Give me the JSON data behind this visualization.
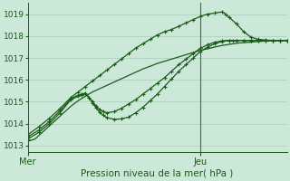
{
  "background_color": "#cce8d8",
  "grid_color": "#aaccbb",
  "line_color": "#1a5c1a",
  "ylabel_ticks": [
    1013,
    1014,
    1015,
    1016,
    1017,
    1018,
    1019
  ],
  "xlim": [
    0,
    72
  ],
  "ylim": [
    1012.7,
    1019.5
  ],
  "xlabel": "Pression niveau de la mer( hPa )",
  "xtick_positions": [
    0,
    48
  ],
  "xtick_labels": [
    "Mer",
    "Jeu"
  ],
  "vline_x": 48,
  "vline_color": "#4a6a4a",
  "line1_x": [
    0,
    2,
    4,
    6,
    8,
    10,
    12,
    14,
    16,
    18,
    20,
    22,
    24,
    26,
    28,
    30,
    32,
    34,
    36,
    38,
    40,
    42,
    44,
    46,
    48,
    50,
    52,
    54,
    56,
    58,
    60,
    62,
    64,
    66,
    68,
    70,
    72
  ],
  "line1_y": [
    1013.2,
    1013.3,
    1013.6,
    1013.9,
    1014.2,
    1014.5,
    1014.8,
    1015.05,
    1015.25,
    1015.45,
    1015.6,
    1015.75,
    1015.9,
    1016.05,
    1016.2,
    1016.35,
    1016.5,
    1016.62,
    1016.75,
    1016.85,
    1016.95,
    1017.05,
    1017.15,
    1017.25,
    1017.35,
    1017.42,
    1017.5,
    1017.57,
    1017.62,
    1017.67,
    1017.7,
    1017.72,
    1017.75,
    1017.77,
    1017.78,
    1017.79,
    1017.8
  ],
  "line2_x": [
    0,
    3,
    6,
    9,
    12,
    14,
    15,
    16,
    17,
    18,
    19,
    20,
    21,
    22,
    24,
    26,
    28,
    30,
    32,
    34,
    36,
    38,
    40,
    42,
    44,
    46,
    48,
    50,
    52,
    54,
    56,
    58,
    60,
    62,
    64,
    66,
    68,
    70,
    72
  ],
  "line2_y": [
    1013.3,
    1013.6,
    1014.0,
    1014.5,
    1015.1,
    1015.25,
    1015.3,
    1015.35,
    1015.2,
    1015.0,
    1014.8,
    1014.65,
    1014.55,
    1014.5,
    1014.55,
    1014.7,
    1014.9,
    1015.1,
    1015.35,
    1015.6,
    1015.85,
    1016.1,
    1016.4,
    1016.7,
    1016.95,
    1017.2,
    1017.45,
    1017.6,
    1017.72,
    1017.78,
    1017.8,
    1017.8,
    1017.8,
    1017.8,
    1017.8,
    1017.8,
    1017.8,
    1017.8,
    1017.8
  ],
  "line3_x": [
    0,
    3,
    6,
    9,
    12,
    14,
    15,
    16,
    17,
    18,
    19,
    20,
    21,
    22,
    24,
    26,
    28,
    30,
    32,
    34,
    36,
    38,
    40,
    42,
    44,
    46,
    48,
    50,
    52,
    54,
    56,
    57,
    58,
    60,
    62,
    64,
    66,
    68,
    70,
    72
  ],
  "line3_y": [
    1013.4,
    1013.7,
    1014.1,
    1014.6,
    1015.15,
    1015.3,
    1015.35,
    1015.4,
    1015.2,
    1014.95,
    1014.72,
    1014.52,
    1014.38,
    1014.28,
    1014.2,
    1014.22,
    1014.3,
    1014.5,
    1014.75,
    1015.05,
    1015.35,
    1015.7,
    1016.05,
    1016.4,
    1016.7,
    1017.0,
    1017.3,
    1017.5,
    1017.65,
    1017.75,
    1017.8,
    1017.8,
    1017.8,
    1017.8,
    1017.8,
    1017.8,
    1017.8,
    1017.8,
    1017.8,
    1017.8
  ],
  "line4_x": [
    0,
    3,
    6,
    9,
    12,
    14,
    16,
    18,
    20,
    22,
    24,
    26,
    28,
    30,
    32,
    34,
    36,
    38,
    40,
    42,
    44,
    46,
    48,
    50,
    52,
    54,
    55,
    56,
    58,
    60,
    62,
    64,
    66,
    68,
    70,
    72
  ],
  "line4_y": [
    1013.5,
    1013.85,
    1014.25,
    1014.7,
    1015.2,
    1015.45,
    1015.7,
    1015.95,
    1016.2,
    1016.45,
    1016.7,
    1016.95,
    1017.2,
    1017.45,
    1017.65,
    1017.85,
    1018.05,
    1018.2,
    1018.3,
    1018.45,
    1018.6,
    1018.75,
    1018.9,
    1019.0,
    1019.05,
    1019.1,
    1019.0,
    1018.85,
    1018.55,
    1018.2,
    1017.95,
    1017.85,
    1017.82,
    1017.8,
    1017.8,
    1017.8
  ]
}
